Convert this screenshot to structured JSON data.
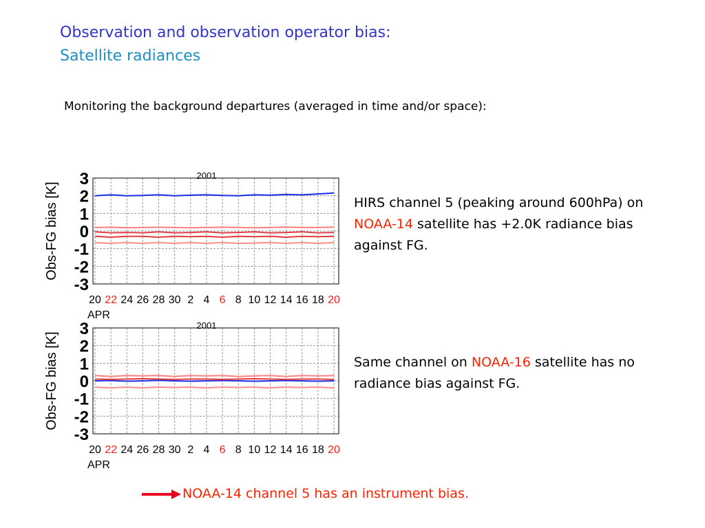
{
  "slide": {
    "title_line1": "Observation and observation operator bias:",
    "title_line2": "Satellite radiances",
    "subtitle": "Monitoring the background departures (averaged in time and/or space):",
    "desc1_a": "HIRS channel 5 (peaking around 600hPa) on ",
    "desc1_highlight": "NOAA-14",
    "desc1_b": " satellite has +2.0K radiance bias against FG.",
    "desc2_a": "Same channel on ",
    "desc2_highlight": "NOAA-16",
    "desc2_b": " satellite has no radiance bias against FG.",
    "conclusion": "NOAA-14 channel 5 has an instrument bias.",
    "highlight_color": "#ff2200"
  },
  "chart_data": [
    {
      "type": "line",
      "title": "2001",
      "ylabel": "Obs-FG bias [K]",
      "xlabel": "APR",
      "ylim": [
        -3,
        3
      ],
      "yticks": [
        "3",
        "2",
        "1",
        "0",
        "-1",
        "-2",
        "-3"
      ],
      "xticks": [
        "20",
        "22",
        "24",
        "26",
        "28",
        "30",
        "2",
        "4",
        "6",
        "8",
        "10",
        "12",
        "14",
        "16",
        "18",
        "20"
      ],
      "xtick_red": [
        "22",
        "6",
        "20"
      ],
      "grid": true,
      "series": [
        {
          "color": "#1a2ee6",
          "values": [
            2.0,
            2.05,
            2.0,
            2.02,
            2.05,
            2.0,
            2.03,
            2.05,
            2.02,
            2.0,
            2.05,
            2.03,
            2.07,
            2.05,
            2.1,
            2.15
          ]
        },
        {
          "color": "#ff7f7f",
          "values": [
            0.2,
            0.22,
            0.18,
            0.2,
            0.22,
            0.2,
            0.18,
            0.2,
            0.22,
            0.2,
            0.18,
            0.2,
            0.22,
            0.2,
            0.2,
            0.22
          ]
        },
        {
          "color": "#e0404a",
          "values": [
            -0.05,
            -0.1,
            -0.08,
            -0.1,
            -0.05,
            -0.1,
            -0.08,
            -0.05,
            -0.1,
            -0.08,
            -0.05,
            -0.1,
            -0.08,
            -0.05,
            -0.1,
            -0.08
          ]
        },
        {
          "color": "#e33a3a",
          "values": [
            -0.3,
            -0.35,
            -0.3,
            -0.3,
            -0.35,
            -0.3,
            -0.32,
            -0.3,
            -0.35,
            -0.3,
            -0.32,
            -0.3,
            -0.35,
            -0.3,
            -0.32,
            -0.3
          ]
        },
        {
          "color": "#ff8c8c",
          "values": [
            -0.65,
            -0.7,
            -0.65,
            -0.7,
            -0.65,
            -0.7,
            -0.65,
            -0.7,
            -0.65,
            -0.7,
            -0.68,
            -0.65,
            -0.7,
            -0.65,
            -0.7,
            -0.65
          ]
        }
      ]
    },
    {
      "type": "line",
      "title": "2001",
      "ylabel": "Obs-FG bias [K]",
      "xlabel": "APR",
      "ylim": [
        -3,
        3
      ],
      "yticks": [
        "3",
        "2",
        "1",
        "0",
        "-1",
        "-2",
        "-3"
      ],
      "xticks": [
        "20",
        "22",
        "24",
        "26",
        "28",
        "30",
        "2",
        "4",
        "6",
        "8",
        "10",
        "12",
        "14",
        "16",
        "18",
        "20"
      ],
      "xtick_red": [
        "22",
        "6",
        "20"
      ],
      "grid": true,
      "series": [
        {
          "color": "#ff8080",
          "values": [
            0.3,
            0.25,
            0.3,
            0.28,
            0.3,
            0.25,
            0.3,
            0.28,
            0.3,
            0.25,
            0.28,
            0.3,
            0.25,
            0.3,
            0.28,
            0.3
          ]
        },
        {
          "color": "#1a2ee6",
          "values": [
            0.0,
            0.02,
            -0.02,
            0.0,
            0.03,
            0.0,
            -0.02,
            0.0,
            0.02,
            0.0,
            -0.02,
            0.0,
            0.02,
            0.0,
            -0.02,
            0.0
          ]
        },
        {
          "color": "#e33a3a",
          "values": [
            0.1,
            0.08,
            0.1,
            0.12,
            0.1,
            0.08,
            0.1,
            0.1,
            0.08,
            0.1,
            0.12,
            0.1,
            0.08,
            0.1,
            0.1,
            0.08
          ]
        },
        {
          "color": "#ff8c8c",
          "values": [
            -0.35,
            -0.4,
            -0.35,
            -0.4,
            -0.35,
            -0.38,
            -0.35,
            -0.4,
            -0.35,
            -0.38,
            -0.35,
            -0.4,
            -0.35,
            -0.38,
            -0.35,
            -0.4
          ]
        }
      ]
    }
  ]
}
